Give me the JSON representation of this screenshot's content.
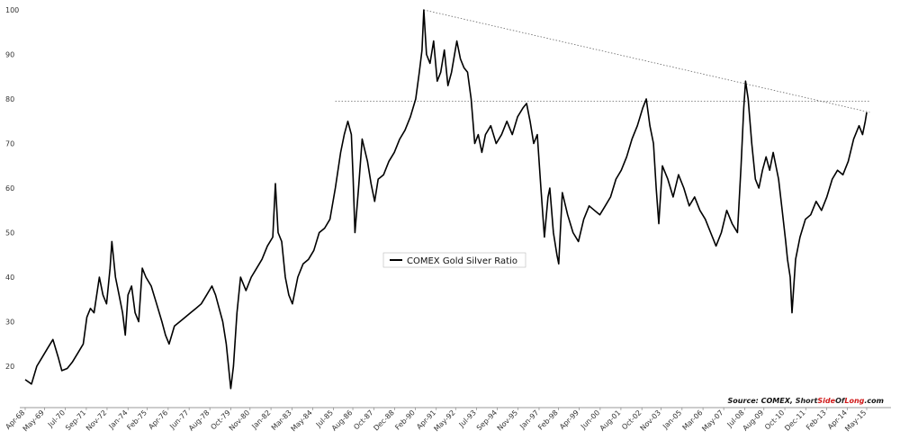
{
  "chart_data": {
    "type": "line",
    "title": "",
    "xlabel": "",
    "ylabel": "",
    "ylim": [
      15,
      100
    ],
    "y_ticks": [
      20,
      30,
      40,
      50,
      60,
      70,
      80,
      90,
      100
    ],
    "x_range": [
      1968.25,
      2015.5
    ],
    "x_ticks": [
      {
        "label": "Apr-68",
        "x": 1968.25
      },
      {
        "label": "May-69",
        "x": 1969.33
      },
      {
        "label": "Jul-70",
        "x": 1970.5
      },
      {
        "label": "Sep-71",
        "x": 1971.67
      },
      {
        "label": "Nov-72",
        "x": 1972.83
      },
      {
        "label": "Jan-74",
        "x": 1974.0
      },
      {
        "label": "Feb-75",
        "x": 1975.08
      },
      {
        "label": "Apr-76",
        "x": 1976.25
      },
      {
        "label": "Jun-77",
        "x": 1977.42
      },
      {
        "label": "Aug-78",
        "x": 1978.58
      },
      {
        "label": "Oct-79",
        "x": 1979.75
      },
      {
        "label": "Nov-80",
        "x": 1980.83
      },
      {
        "label": "Jan-82",
        "x": 1982.0
      },
      {
        "label": "Mar-83",
        "x": 1983.17
      },
      {
        "label": "May-84",
        "x": 1984.33
      },
      {
        "label": "Jul-85",
        "x": 1985.5
      },
      {
        "label": "Aug-86",
        "x": 1986.58
      },
      {
        "label": "Oct-87",
        "x": 1987.75
      },
      {
        "label": "Dec-88",
        "x": 1988.92
      },
      {
        "label": "Feb-90",
        "x": 1990.08
      },
      {
        "label": "Apr-91",
        "x": 1991.25
      },
      {
        "label": "May-92",
        "x": 1992.33
      },
      {
        "label": "Jul-93",
        "x": 1993.5
      },
      {
        "label": "Sep-94",
        "x": 1994.67
      },
      {
        "label": "Nov-95",
        "x": 1995.83
      },
      {
        "label": "Jan-97",
        "x": 1997.0
      },
      {
        "label": "Feb-98",
        "x": 1998.08
      },
      {
        "label": "Apr-99",
        "x": 1999.25
      },
      {
        "label": "Jun-00",
        "x": 2000.42
      },
      {
        "label": "Aug-01",
        "x": 2001.58
      },
      {
        "label": "Oct-02",
        "x": 2002.75
      },
      {
        "label": "Nov-03",
        "x": 2003.83
      },
      {
        "label": "Jan-05",
        "x": 2005.0
      },
      {
        "label": "Mar-06",
        "x": 2006.17
      },
      {
        "label": "May-07",
        "x": 2007.33
      },
      {
        "label": "Jul-08",
        "x": 2008.5
      },
      {
        "label": "Aug-09",
        "x": 2009.58
      },
      {
        "label": "Oct-10",
        "x": 2010.75
      },
      {
        "label": "Dec-11",
        "x": 2011.92
      },
      {
        "label": "Feb-13",
        "x": 2013.08
      },
      {
        "label": "Apr-14",
        "x": 2014.25
      },
      {
        "label": "May-15",
        "x": 2015.33
      }
    ],
    "grid": false,
    "legend": {
      "placement": "center"
    },
    "series": [
      {
        "name": "COMEX Gold Silver Ratio",
        "color": "#000000",
        "points": [
          [
            1968.25,
            17
          ],
          [
            1968.6,
            16
          ],
          [
            1968.9,
            20
          ],
          [
            1969.2,
            22
          ],
          [
            1969.5,
            24
          ],
          [
            1969.8,
            26
          ],
          [
            1970.1,
            22
          ],
          [
            1970.3,
            19
          ],
          [
            1970.6,
            19.5
          ],
          [
            1970.9,
            21
          ],
          [
            1971.2,
            23
          ],
          [
            1971.5,
            25
          ],
          [
            1971.7,
            31
          ],
          [
            1971.9,
            33
          ],
          [
            1972.1,
            32
          ],
          [
            1972.4,
            40
          ],
          [
            1972.6,
            36
          ],
          [
            1972.8,
            34
          ],
          [
            1973.0,
            42
          ],
          [
            1973.1,
            48
          ],
          [
            1973.3,
            40
          ],
          [
            1973.5,
            36
          ],
          [
            1973.7,
            32
          ],
          [
            1973.85,
            27
          ],
          [
            1974.0,
            36
          ],
          [
            1974.2,
            38
          ],
          [
            1974.4,
            32
          ],
          [
            1974.6,
            30
          ],
          [
            1974.8,
            42
          ],
          [
            1975.0,
            40
          ],
          [
            1975.3,
            38
          ],
          [
            1975.6,
            34
          ],
          [
            1975.9,
            30
          ],
          [
            1976.1,
            27
          ],
          [
            1976.3,
            25
          ],
          [
            1976.6,
            29
          ],
          [
            1976.9,
            30
          ],
          [
            1977.2,
            31
          ],
          [
            1977.5,
            32
          ],
          [
            1977.8,
            33
          ],
          [
            1978.1,
            34
          ],
          [
            1978.4,
            36
          ],
          [
            1978.7,
            38
          ],
          [
            1978.9,
            36
          ],
          [
            1979.1,
            33
          ],
          [
            1979.3,
            30
          ],
          [
            1979.5,
            25
          ],
          [
            1979.75,
            15
          ],
          [
            1979.9,
            20
          ],
          [
            1980.1,
            32
          ],
          [
            1980.3,
            40
          ],
          [
            1980.6,
            37
          ],
          [
            1980.9,
            40
          ],
          [
            1981.2,
            42
          ],
          [
            1981.5,
            44
          ],
          [
            1981.8,
            47
          ],
          [
            1982.1,
            49
          ],
          [
            1982.25,
            61
          ],
          [
            1982.4,
            50
          ],
          [
            1982.6,
            48
          ],
          [
            1982.8,
            40
          ],
          [
            1983.0,
            36
          ],
          [
            1983.2,
            34
          ],
          [
            1983.5,
            40
          ],
          [
            1983.8,
            43
          ],
          [
            1984.1,
            44
          ],
          [
            1984.4,
            46
          ],
          [
            1984.7,
            50
          ],
          [
            1985.0,
            51
          ],
          [
            1985.3,
            53
          ],
          [
            1985.6,
            60
          ],
          [
            1985.9,
            68
          ],
          [
            1986.1,
            72
          ],
          [
            1986.3,
            75
          ],
          [
            1986.5,
            72
          ],
          [
            1986.6,
            62
          ],
          [
            1986.7,
            50
          ],
          [
            1986.9,
            60
          ],
          [
            1987.1,
            71
          ],
          [
            1987.4,
            66
          ],
          [
            1987.6,
            61
          ],
          [
            1987.8,
            57
          ],
          [
            1988.0,
            62
          ],
          [
            1988.3,
            63
          ],
          [
            1988.6,
            66
          ],
          [
            1988.9,
            68
          ],
          [
            1989.2,
            71
          ],
          [
            1989.5,
            73
          ],
          [
            1989.8,
            76
          ],
          [
            1990.1,
            80
          ],
          [
            1990.3,
            86
          ],
          [
            1990.45,
            91
          ],
          [
            1990.55,
            100
          ],
          [
            1990.7,
            90
          ],
          [
            1990.9,
            88
          ],
          [
            1991.1,
            93
          ],
          [
            1991.3,
            84
          ],
          [
            1991.5,
            86
          ],
          [
            1991.7,
            91
          ],
          [
            1991.9,
            83
          ],
          [
            1992.1,
            86
          ],
          [
            1992.4,
            93
          ],
          [
            1992.6,
            89
          ],
          [
            1992.8,
            87
          ],
          [
            1993.0,
            86
          ],
          [
            1993.2,
            80
          ],
          [
            1993.4,
            70
          ],
          [
            1993.6,
            72
          ],
          [
            1993.8,
            68
          ],
          [
            1994.0,
            72
          ],
          [
            1994.3,
            74
          ],
          [
            1994.6,
            70
          ],
          [
            1994.9,
            72
          ],
          [
            1995.2,
            75
          ],
          [
            1995.5,
            72
          ],
          [
            1995.8,
            76
          ],
          [
            1996.1,
            78
          ],
          [
            1996.3,
            79
          ],
          [
            1996.5,
            75
          ],
          [
            1996.7,
            70
          ],
          [
            1996.9,
            72
          ],
          [
            1997.1,
            60
          ],
          [
            1997.3,
            49
          ],
          [
            1997.5,
            58
          ],
          [
            1997.6,
            60
          ],
          [
            1997.8,
            50
          ],
          [
            1998.0,
            45
          ],
          [
            1998.1,
            43
          ],
          [
            1998.3,
            59
          ],
          [
            1998.6,
            54
          ],
          [
            1998.9,
            50
          ],
          [
            1999.2,
            48
          ],
          [
            1999.5,
            53
          ],
          [
            1999.8,
            56
          ],
          [
            2000.1,
            55
          ],
          [
            2000.4,
            54
          ],
          [
            2000.7,
            56
          ],
          [
            2001.0,
            58
          ],
          [
            2001.3,
            62
          ],
          [
            2001.6,
            64
          ],
          [
            2001.9,
            67
          ],
          [
            2002.2,
            71
          ],
          [
            2002.5,
            74
          ],
          [
            2002.8,
            78
          ],
          [
            2003.0,
            80
          ],
          [
            2003.2,
            74
          ],
          [
            2003.4,
            70
          ],
          [
            2003.55,
            60
          ],
          [
            2003.7,
            52
          ],
          [
            2003.9,
            65
          ],
          [
            2004.2,
            62
          ],
          [
            2004.5,
            58
          ],
          [
            2004.8,
            63
          ],
          [
            2005.1,
            60
          ],
          [
            2005.4,
            56
          ],
          [
            2005.7,
            58
          ],
          [
            2006.0,
            55
          ],
          [
            2006.3,
            53
          ],
          [
            2006.6,
            50
          ],
          [
            2006.9,
            47
          ],
          [
            2007.2,
            50
          ],
          [
            2007.5,
            55
          ],
          [
            2007.8,
            52
          ],
          [
            2008.1,
            50
          ],
          [
            2008.3,
            65
          ],
          [
            2008.45,
            78
          ],
          [
            2008.55,
            84
          ],
          [
            2008.7,
            80
          ],
          [
            2008.9,
            70
          ],
          [
            2009.1,
            62
          ],
          [
            2009.3,
            60
          ],
          [
            2009.5,
            64
          ],
          [
            2009.7,
            67
          ],
          [
            2009.9,
            64
          ],
          [
            2010.1,
            68
          ],
          [
            2010.4,
            62
          ],
          [
            2010.6,
            55
          ],
          [
            2010.8,
            48
          ],
          [
            2010.9,
            44
          ],
          [
            2011.05,
            40
          ],
          [
            2011.15,
            32
          ],
          [
            2011.35,
            44
          ],
          [
            2011.6,
            49
          ],
          [
            2011.9,
            53
          ],
          [
            2012.2,
            54
          ],
          [
            2012.5,
            57
          ],
          [
            2012.8,
            55
          ],
          [
            2013.1,
            58
          ],
          [
            2013.4,
            62
          ],
          [
            2013.7,
            64
          ],
          [
            2014.0,
            63
          ],
          [
            2014.3,
            66
          ],
          [
            2014.6,
            71
          ],
          [
            2014.9,
            74
          ],
          [
            2015.1,
            72
          ],
          [
            2015.25,
            75
          ],
          [
            2015.33,
            77
          ]
        ]
      }
    ],
    "reference_lines": [
      {
        "type": "trend",
        "from": [
          1990.55,
          100
        ],
        "to": [
          2015.5,
          77
        ],
        "style": "dotted"
      },
      {
        "type": "horizontal",
        "y": 79.5,
        "from_x": 1985.6,
        "to_x": 2015.5,
        "style": "dotted"
      }
    ]
  },
  "source": {
    "prefix": "Source: COMEX, ",
    "brand_a1": "Short",
    "brand_b1": "Side",
    "brand_a2": "Of",
    "brand_b2": "Long",
    "suffix": ".com"
  }
}
